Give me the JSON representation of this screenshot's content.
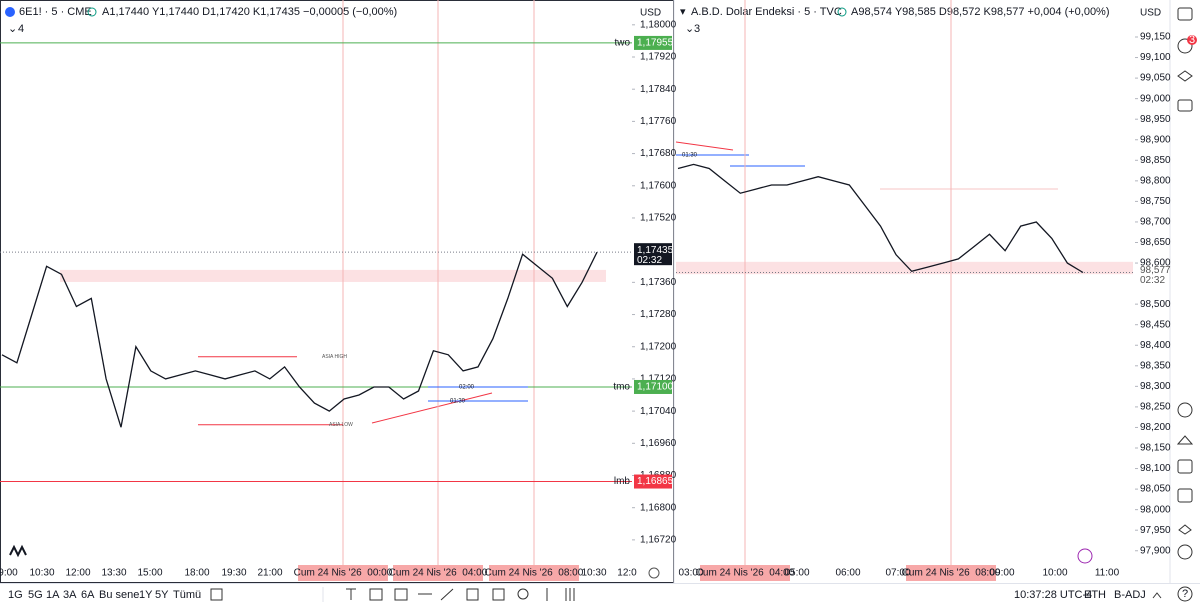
{
  "toolbar": {
    "ranges": [
      "1G",
      "5G",
      "1A",
      "3A",
      "6A",
      "Bu sene",
      "1Y",
      "5Y",
      "Tümü"
    ],
    "clock": "10:37:28 UTC-4",
    "session": "ETH",
    "adjust": "B-ADJ",
    "alert_badge": "3"
  },
  "chart_data": [
    {
      "type": "line",
      "symbol": "6E1! · 5 · CME",
      "ohlc": "A1,17440 Y1,17440 D1,17420 K1,17435 −0,00005 (−0,00%)",
      "indicators": "4",
      "currency": "USD",
      "color": "#131722",
      "values": [
        1.1718,
        1.1716,
        1.1728,
        1.174,
        1.1738,
        1.173,
        1.1732,
        1.1712,
        1.17,
        1.172,
        1.1714,
        1.1712,
        1.1713,
        1.1714,
        1.1713,
        1.1712,
        1.1713,
        1.1714,
        1.1712,
        1.1715,
        1.171,
        1.1706,
        1.1704,
        1.1707,
        1.1708,
        1.171,
        1.171,
        1.1707,
        1.1709,
        1.1719,
        1.1718,
        1.1714,
        1.1715,
        1.1722,
        1.1732,
        1.1743,
        1.174,
        1.1737,
        1.173,
        1.1736,
        1.17435
      ],
      "ylim": [
        1.1667,
        1.18007
      ],
      "yticks": [
        {
          "value": 1.18,
          "label": "1,18000"
        },
        {
          "value": 1.1792,
          "label": "1,17920"
        },
        {
          "value": 1.1784,
          "label": "1,17840"
        },
        {
          "value": 1.1776,
          "label": "1,17760"
        },
        {
          "value": 1.1768,
          "label": "1,17680"
        },
        {
          "value": 1.176,
          "label": "1,17600"
        },
        {
          "value": 1.1752,
          "label": "1,17520"
        },
        {
          "value": 1.1736,
          "label": "1,17360"
        },
        {
          "value": 1.1728,
          "label": "1,17280"
        },
        {
          "value": 1.172,
          "label": "1,17200"
        },
        {
          "value": 1.1712,
          "label": "1,17120"
        },
        {
          "value": 1.1704,
          "label": "1,17040"
        },
        {
          "value": 1.1696,
          "label": "1,16960"
        },
        {
          "value": 1.1688,
          "label": "1,16880"
        },
        {
          "value": 1.168,
          "label": "1,16800"
        },
        {
          "value": 1.1672,
          "label": "1,16720"
        }
      ],
      "current": {
        "value": 1.17435,
        "label": "1,17435",
        "countdown": "02:32"
      },
      "levels": [
        {
          "name": "two",
          "value": 1.17955,
          "label": "1,17955",
          "color": "#4caf50"
        },
        {
          "name": "tmo",
          "value": 1.171,
          "label": "1,17100",
          "color": "#4caf50"
        },
        {
          "name": "lmb",
          "value": 1.16865,
          "label": "1,16865",
          "color": "#f23645"
        }
      ],
      "zones": [
        {
          "from": 1.17361,
          "to": 1.17391
        }
      ],
      "annotations": [
        {
          "text": "ASIA HIGH",
          "value": 1.17175
        },
        {
          "text": "ASIA LOW",
          "value": 1.17006
        },
        {
          "text": "02:00",
          "value": 1.171
        },
        {
          "text": "01:30",
          "value": 1.17065
        }
      ],
      "time_labels": [
        "9:00",
        "10:30",
        "12:00",
        "13:30",
        "15:00",
        "18:00",
        "19:30",
        "21:00",
        "10:30",
        "12:0"
      ],
      "date_markers": [
        "Cum 24 Nis '26  00:00",
        "Cum 24 Nis '26  04:00",
        "Cum 24 Nis '26  08:00"
      ]
    },
    {
      "type": "line",
      "symbol": "A.B.D. Dolar Endeksi · 5 · TVC",
      "ohlc": "A98,574 Y98,585 D98,572 K98,577 +0,004 (+0,00%)",
      "indicators": "3",
      "currency": "USD",
      "color": "#131722",
      "values": [
        98.83,
        98.84,
        98.83,
        98.8,
        98.77,
        98.78,
        98.79,
        98.79,
        98.8,
        98.81,
        98.8,
        98.79,
        98.74,
        98.69,
        98.62,
        98.58,
        98.59,
        98.6,
        98.61,
        98.64,
        98.67,
        98.63,
        98.69,
        98.7,
        98.66,
        98.6,
        98.577
      ],
      "ylim": [
        97.8775,
        99.1865
      ],
      "yticks": [
        {
          "value": 99.15,
          "label": "99,150"
        },
        {
          "value": 99.1,
          "label": "99,100"
        },
        {
          "value": 99.05,
          "label": "99,050"
        },
        {
          "value": 99.0,
          "label": "99,000"
        },
        {
          "value": 98.95,
          "label": "98,950"
        },
        {
          "value": 98.9,
          "label": "98,900"
        },
        {
          "value": 98.85,
          "label": "98,850"
        },
        {
          "value": 98.8,
          "label": "98,800"
        },
        {
          "value": 98.75,
          "label": "98,750"
        },
        {
          "value": 98.7,
          "label": "98,700"
        },
        {
          "value": 98.65,
          "label": "98,650"
        },
        {
          "value": 98.6,
          "label": "98,600"
        },
        {
          "value": 98.5,
          "label": "98,500"
        },
        {
          "value": 98.45,
          "label": "98,450"
        },
        {
          "value": 98.4,
          "label": "98,400"
        },
        {
          "value": 98.35,
          "label": "98,350"
        },
        {
          "value": 98.3,
          "label": "98,300"
        },
        {
          "value": 98.25,
          "label": "98,250"
        },
        {
          "value": 98.2,
          "label": "98,200"
        },
        {
          "value": 98.15,
          "label": "98,150"
        },
        {
          "value": 98.1,
          "label": "98,100"
        },
        {
          "value": 98.05,
          "label": "98,050"
        },
        {
          "value": 98.0,
          "label": "98,000"
        },
        {
          "value": 97.95,
          "label": "97,950"
        },
        {
          "value": 97.9,
          "label": "97,900"
        }
      ],
      "current": {
        "value": 98.577,
        "label": "98,577",
        "countdown": "02:32"
      },
      "levels": [],
      "zones": [
        {
          "from": 98.573,
          "to": 98.603
        }
      ],
      "annotations": [
        {
          "text": "01:30",
          "value": 98.863
        }
      ],
      "time_labels": [
        "03:00",
        "05:00",
        "06:00",
        "07:00",
        "09:00",
        "10:00",
        "11:00"
      ],
      "date_markers": [
        "Cum 24 Nis '26  04:00",
        "Cum 24 Nis '26  08:00"
      ]
    }
  ]
}
